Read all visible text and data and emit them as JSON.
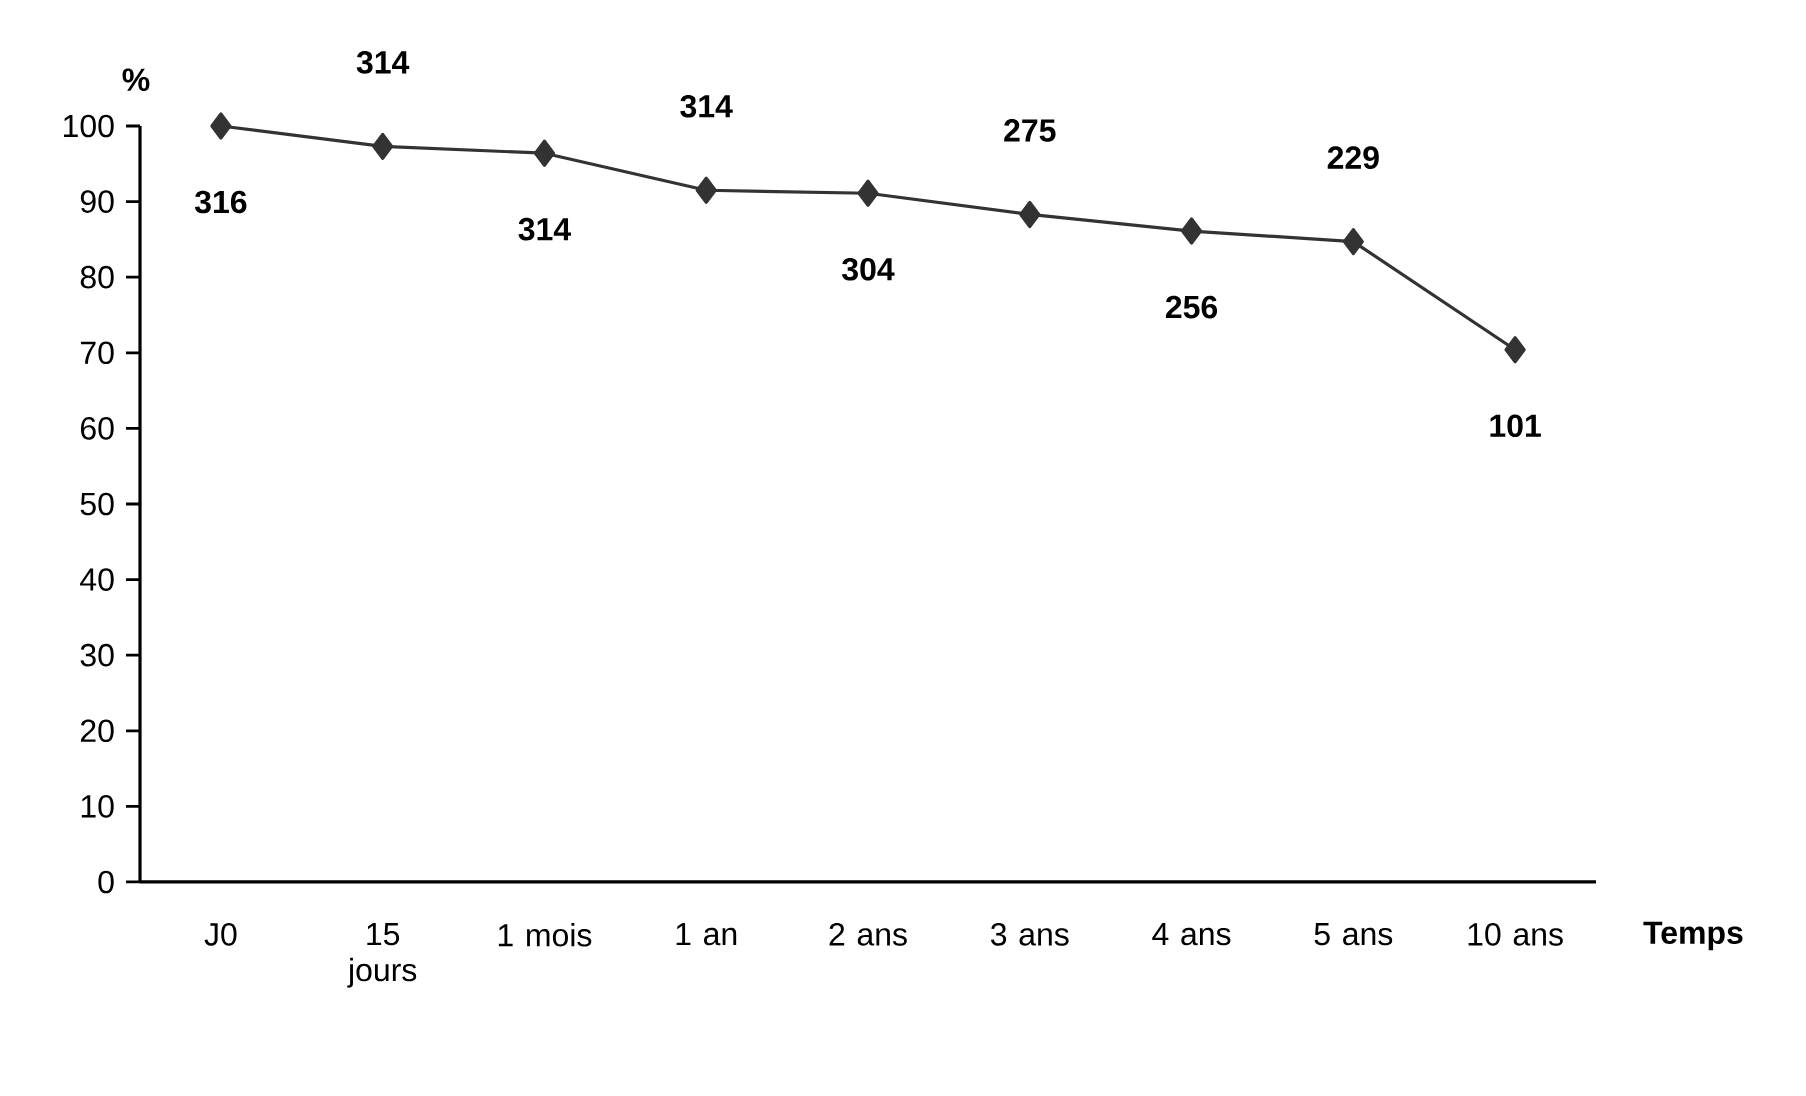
{
  "chart_data": {
    "type": "line",
    "xlabel": "Temps",
    "ylabel": "%",
    "categories": [
      "J0",
      "15 jours",
      "1 mois",
      "1 an",
      "2 ans",
      "3 ans",
      "4 ans",
      "5 ans",
      "10 ans"
    ],
    "values": [
      100,
      97.3,
      96.4,
      91.5,
      91.1,
      88.3,
      86.1,
      84.7,
      70.4
    ],
    "annotations": [
      {
        "text": "316",
        "x": "J0",
        "y": 100
      },
      {
        "text": "314",
        "x": "15 jours",
        "y": 97.3
      },
      {
        "text": "314",
        "x": "1 mois",
        "y": 96.4
      },
      {
        "text": "314",
        "x": "1 an",
        "y": 91.5
      },
      {
        "text": "304",
        "x": "2 ans",
        "y": 91.1
      },
      {
        "text": "275",
        "x": "3 ans",
        "y": 88.3
      },
      {
        "text": "256",
        "x": "4 ans",
        "y": 86.1
      },
      {
        "text": "229",
        "x": "5 ans",
        "y": 84.7
      },
      {
        "text": "101",
        "x": "10 ans",
        "y": 70.4
      }
    ],
    "color": "#333333",
    "marker": "diamond",
    "line_style": "solid",
    "ylim": [
      0,
      100
    ],
    "yticks": [
      0,
      10,
      20,
      30,
      40,
      50,
      60,
      70,
      80,
      90,
      100
    ],
    "grid": false
  }
}
